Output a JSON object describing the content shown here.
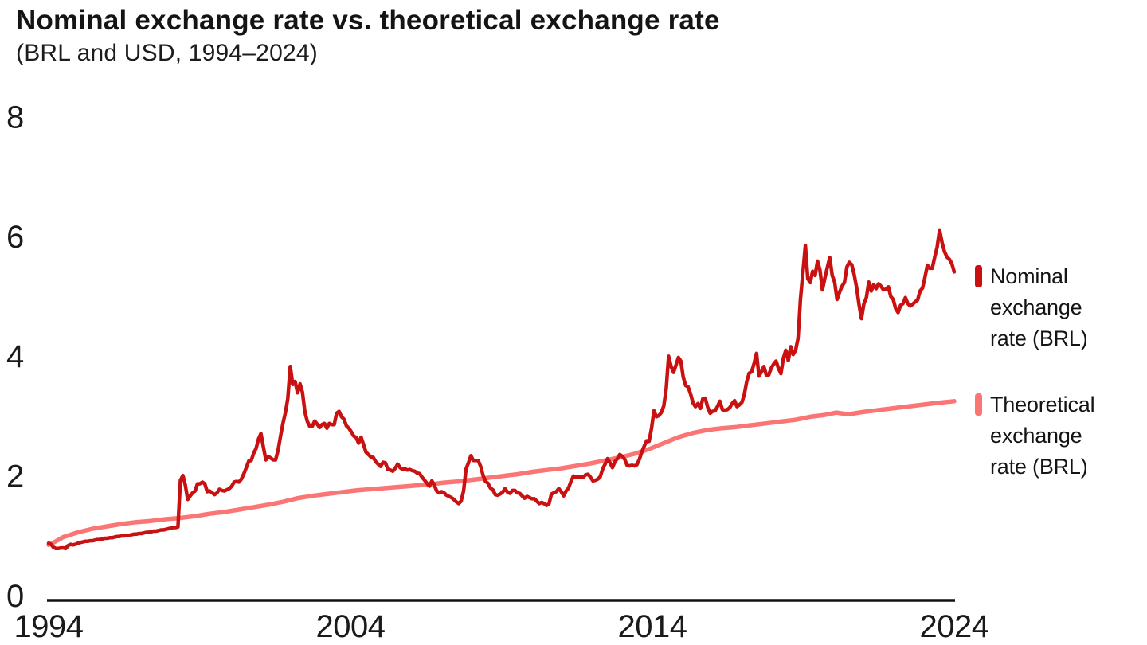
{
  "header": {
    "title": "Nominal exchange rate vs. theoretical exchange rate",
    "subtitle": "(BRL and USD, 1994–2024)"
  },
  "legend": {
    "items": [
      {
        "lines": [
          "Nominal",
          "exchange",
          "rate (BRL)"
        ],
        "color": "#C91111"
      },
      {
        "lines": [
          "Theoretical",
          "exchange",
          "rate (BRL)"
        ],
        "color": "#FB7575"
      }
    ]
  },
  "chart_data": {
    "type": "line",
    "title": "Nominal exchange rate vs. theoretical exchange rate",
    "subtitle": "(BRL and USD, 1994–2024)",
    "xlabel": "",
    "ylabel": "",
    "x_range": [
      1994.5,
      2025.42
    ],
    "ylim": [
      0,
      8
    ],
    "y_ticks": [
      0,
      2,
      4,
      6,
      8
    ],
    "x_tick_labels": [
      "1994",
      "2004",
      "2014",
      "2024"
    ],
    "grid": false,
    "legend_position": "right",
    "series": [
      {
        "name": "Nominal exchange rate (BRL)",
        "color": "#C91111",
        "stroke_width": 4.5,
        "frequency": "monthly",
        "x_start": 1994.5,
        "values": [
          0.93,
          0.91,
          0.86,
          0.84,
          0.84,
          0.85,
          0.85,
          0.84,
          0.89,
          0.91,
          0.9,
          0.91,
          0.93,
          0.94,
          0.95,
          0.96,
          0.96,
          0.97,
          0.97,
          0.98,
          0.99,
          0.99,
          1.0,
          1.01,
          1.01,
          1.02,
          1.02,
          1.03,
          1.04,
          1.04,
          1.05,
          1.05,
          1.06,
          1.06,
          1.07,
          1.08,
          1.08,
          1.09,
          1.09,
          1.1,
          1.11,
          1.11,
          1.12,
          1.13,
          1.13,
          1.14,
          1.15,
          1.15,
          1.16,
          1.17,
          1.18,
          1.19,
          1.19,
          1.2,
          1.98,
          2.06,
          1.9,
          1.66,
          1.72,
          1.77,
          1.8,
          1.92,
          1.92,
          1.95,
          1.92,
          1.79,
          1.8,
          1.77,
          1.74,
          1.77,
          1.83,
          1.81,
          1.8,
          1.82,
          1.84,
          1.88,
          1.95,
          1.96,
          1.95,
          2.0,
          2.09,
          2.19,
          2.3,
          2.31,
          2.43,
          2.51,
          2.67,
          2.76,
          2.53,
          2.32,
          2.38,
          2.35,
          2.32,
          2.32,
          2.48,
          2.71,
          2.93,
          3.11,
          3.34,
          3.88,
          3.58,
          3.63,
          3.44,
          3.59,
          3.45,
          3.12,
          2.96,
          2.88,
          2.88,
          2.97,
          2.92,
          2.86,
          2.91,
          2.93,
          2.85,
          2.93,
          2.91,
          2.91,
          3.1,
          3.13,
          3.04,
          3.0,
          2.89,
          2.85,
          2.79,
          2.72,
          2.69,
          2.6,
          2.7,
          2.58,
          2.45,
          2.41,
          2.37,
          2.36,
          2.29,
          2.25,
          2.21,
          2.28,
          2.27,
          2.16,
          2.15,
          2.13,
          2.18,
          2.25,
          2.19,
          2.16,
          2.17,
          2.15,
          2.16,
          2.14,
          2.13,
          2.1,
          2.09,
          2.03,
          1.98,
          1.93,
          1.88,
          1.97,
          1.9,
          1.8,
          1.77,
          1.79,
          1.77,
          1.73,
          1.71,
          1.69,
          1.66,
          1.62,
          1.59,
          1.63,
          1.8,
          2.17,
          2.27,
          2.39,
          2.31,
          2.31,
          2.31,
          2.21,
          2.06,
          1.96,
          1.93,
          1.85,
          1.82,
          1.74,
          1.73,
          1.75,
          1.78,
          1.84,
          1.78,
          1.76,
          1.81,
          1.81,
          1.77,
          1.76,
          1.72,
          1.68,
          1.71,
          1.69,
          1.67,
          1.67,
          1.63,
          1.59,
          1.61,
          1.59,
          1.56,
          1.59,
          1.75,
          1.77,
          1.79,
          1.84,
          1.79,
          1.72,
          1.8,
          1.85,
          1.96,
          2.05,
          2.03,
          2.03,
          2.03,
          2.03,
          2.07,
          2.08,
          2.03,
          1.97,
          1.98,
          2.0,
          2.04,
          2.17,
          2.25,
          2.34,
          2.27,
          2.19,
          2.29,
          2.34,
          2.41,
          2.38,
          2.33,
          2.23,
          2.22,
          2.23,
          2.22,
          2.24,
          2.33,
          2.45,
          2.55,
          2.64,
          2.63,
          2.85,
          3.14,
          3.04,
          3.06,
          3.11,
          3.22,
          3.51,
          4.05,
          3.88,
          3.78,
          3.9,
          4.03,
          3.97,
          3.7,
          3.56,
          3.54,
          3.42,
          3.27,
          3.21,
          3.26,
          3.18,
          3.34,
          3.35,
          3.2,
          3.1,
          3.13,
          3.14,
          3.21,
          3.3,
          3.16,
          3.15,
          3.16,
          3.19,
          3.26,
          3.31,
          3.21,
          3.24,
          3.28,
          3.41,
          3.63,
          3.77,
          3.79,
          3.93,
          4.1,
          3.72,
          3.79,
          3.88,
          3.74,
          3.74,
          3.85,
          3.92,
          3.97,
          3.85,
          3.76,
          4.02,
          4.15,
          3.98,
          4.21,
          4.08,
          4.15,
          4.35,
          5.0,
          5.45,
          5.9,
          5.35,
          5.28,
          5.47,
          5.4,
          5.64,
          5.49,
          5.16,
          5.36,
          5.53,
          5.7,
          5.4,
          5.29,
          5.0,
          5.12,
          5.22,
          5.28,
          5.54,
          5.62,
          5.58,
          5.42,
          5.2,
          4.91,
          4.68,
          4.93,
          5.03,
          5.29,
          5.14,
          5.25,
          5.18,
          5.26,
          5.22,
          5.16,
          5.17,
          5.21,
          5.05,
          5.0,
          4.85,
          4.78,
          4.9,
          4.93,
          5.03,
          4.93,
          4.89,
          4.92,
          4.96,
          4.99,
          5.14,
          5.19,
          5.37,
          5.57,
          5.52,
          5.52,
          5.71,
          5.87,
          6.16,
          5.95,
          5.8,
          5.71,
          5.67,
          5.6,
          5.46
        ]
      },
      {
        "name": "Theoretical exchange rate (BRL)",
        "color": "#FB7575",
        "stroke_width": 5.5,
        "points": [
          [
            1994.5,
            0.9
          ],
          [
            1994.75,
            0.96
          ],
          [
            1995.0,
            1.03
          ],
          [
            1995.5,
            1.11
          ],
          [
            1996.0,
            1.17
          ],
          [
            1996.5,
            1.21
          ],
          [
            1997.0,
            1.25
          ],
          [
            1997.5,
            1.28
          ],
          [
            1998.0,
            1.3
          ],
          [
            1998.5,
            1.33
          ],
          [
            1999.0,
            1.35
          ],
          [
            1999.5,
            1.38
          ],
          [
            2000.0,
            1.42
          ],
          [
            2000.5,
            1.45
          ],
          [
            2001.0,
            1.49
          ],
          [
            2001.5,
            1.53
          ],
          [
            2002.0,
            1.57
          ],
          [
            2002.5,
            1.62
          ],
          [
            2003.0,
            1.68
          ],
          [
            2003.5,
            1.72
          ],
          [
            2004.0,
            1.75
          ],
          [
            2004.5,
            1.78
          ],
          [
            2005.0,
            1.81
          ],
          [
            2005.5,
            1.83
          ],
          [
            2006.0,
            1.85
          ],
          [
            2006.5,
            1.87
          ],
          [
            2007.0,
            1.89
          ],
          [
            2007.5,
            1.91
          ],
          [
            2008.0,
            1.94
          ],
          [
            2008.5,
            1.96
          ],
          [
            2009.0,
            1.99
          ],
          [
            2009.5,
            2.02
          ],
          [
            2010.0,
            2.05
          ],
          [
            2010.5,
            2.08
          ],
          [
            2011.0,
            2.12
          ],
          [
            2011.5,
            2.15
          ],
          [
            2012.0,
            2.18
          ],
          [
            2012.5,
            2.22
          ],
          [
            2013.0,
            2.26
          ],
          [
            2013.5,
            2.31
          ],
          [
            2014.0,
            2.36
          ],
          [
            2014.5,
            2.42
          ],
          [
            2015.0,
            2.5
          ],
          [
            2015.5,
            2.6
          ],
          [
            2016.0,
            2.7
          ],
          [
            2016.5,
            2.77
          ],
          [
            2017.0,
            2.82
          ],
          [
            2017.5,
            2.85
          ],
          [
            2018.0,
            2.87
          ],
          [
            2018.5,
            2.9
          ],
          [
            2019.0,
            2.93
          ],
          [
            2019.5,
            2.96
          ],
          [
            2020.0,
            2.99
          ],
          [
            2020.5,
            3.04
          ],
          [
            2021.0,
            3.07
          ],
          [
            2021.4,
            3.11
          ],
          [
            2021.8,
            3.08
          ],
          [
            2022.3,
            3.12
          ],
          [
            2022.8,
            3.15
          ],
          [
            2023.3,
            3.18
          ],
          [
            2023.8,
            3.21
          ],
          [
            2024.3,
            3.24
          ],
          [
            2024.8,
            3.27
          ],
          [
            2025.42,
            3.3
          ]
        ]
      }
    ]
  }
}
